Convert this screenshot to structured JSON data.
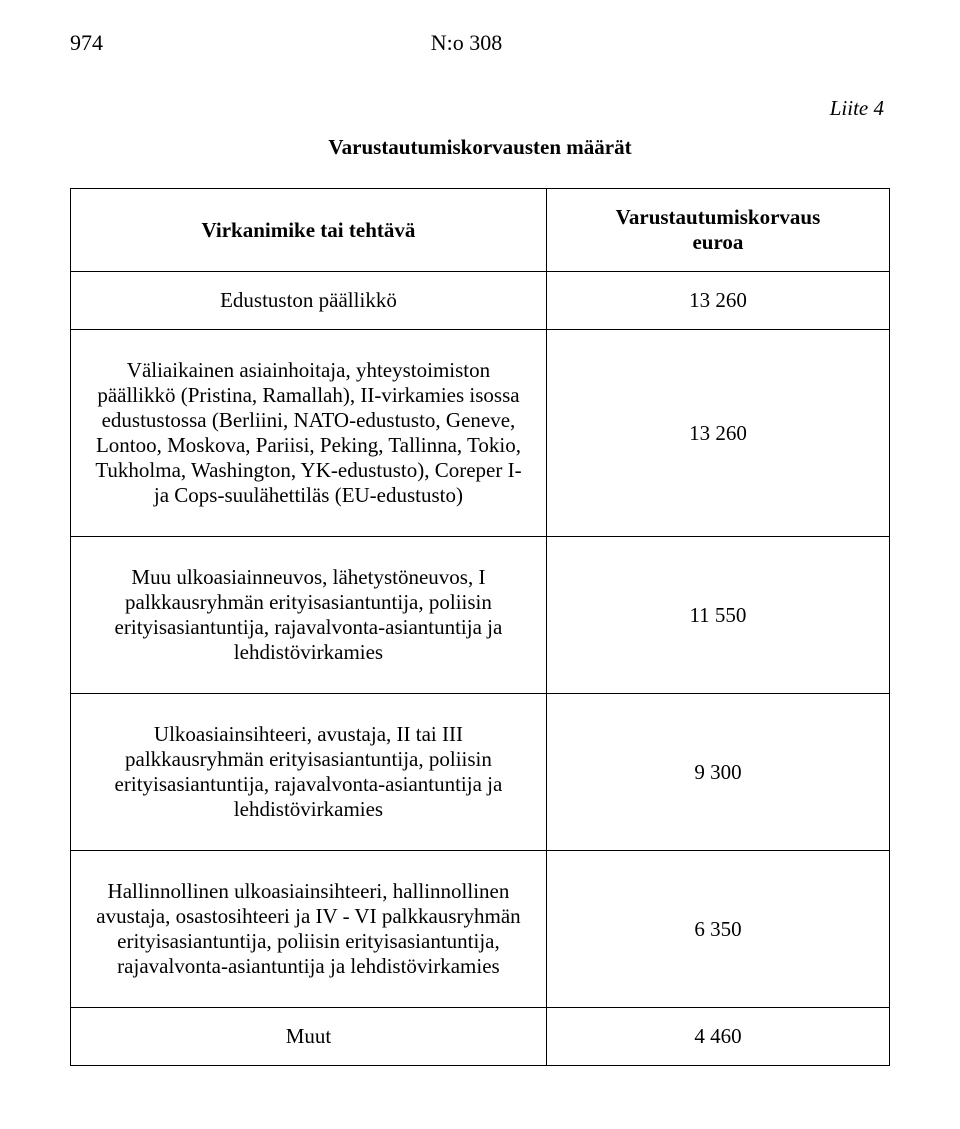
{
  "header": {
    "page_number": "974",
    "doc_number": "N:o 308"
  },
  "liite": "Liite 4",
  "title": "Varustautumiskorvausten määrät",
  "table": {
    "header_row": {
      "left": "Virkanimike tai tehtävä",
      "right_top": "Varustautumiskorvaus",
      "right_bottom": "euroa"
    },
    "sub_header": {
      "left": "Edustuston päällikkö",
      "right": "13 260"
    },
    "rows": [
      {
        "left": "Väliaikainen asiainhoitaja, yhteystoimiston päällikkö (Pristina, Ramallah), II-virkamies isossa edustustossa (Berliini, NATO-edustusto, Geneve, Lontoo, Moskova, Pariisi, Peking, Tallinna, Tokio, Tukholma, Washington, YK-edustusto), Coreper I- ja Cops-suulähettiläs (EU-edustusto)",
        "right": "13 260"
      },
      {
        "left": "Muu ulkoasiainneuvos, lähetystöneuvos, I palkkausryhmän erityisasiantuntija, poliisin erityisasiantuntija, rajavalvonta-asiantuntija ja lehdistövirkamies",
        "right": "11 550"
      },
      {
        "left": "Ulkoasiainsihteeri, avustaja, II tai III palkkausryhmän erityisasiantuntija, poliisin erityisasiantuntija, rajavalvonta-asiantuntija ja lehdistövirkamies",
        "right": "9 300"
      },
      {
        "left": "Hallinnollinen ulkoasiainsihteeri, hallinnollinen avustaja, osastosihteeri ja IV - VI palkkausryhmän erityisasiantuntija, poliisin erityisasiantuntija, rajavalvonta-asiantuntija ja lehdistövirkamies",
        "right": "6 350"
      },
      {
        "left": "Muut",
        "right": "4 460"
      }
    ]
  },
  "colors": {
    "text": "#000000",
    "background": "#ffffff",
    "border": "#000000"
  },
  "typography": {
    "font_family": "Times New Roman",
    "body_fontsize_pt": 16,
    "header_fontsize_pt": 17,
    "title_weight": "bold"
  }
}
